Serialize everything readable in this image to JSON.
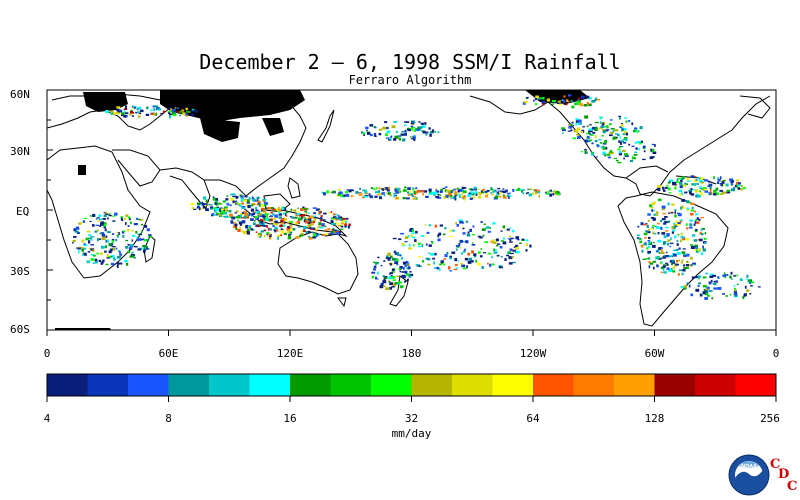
{
  "title": "December 2 – 6, 1998 SSM/I Rainfall",
  "subtitle": "Ferraro Algorithm",
  "map": {
    "lat_labels": [
      "60N",
      "30N",
      "EQ",
      "30S",
      "60S"
    ],
    "lon_labels": [
      "0",
      "60E",
      "120E",
      "180",
      "120W",
      "60W",
      "0"
    ],
    "lat_range": [
      -60,
      60
    ],
    "lon_range": [
      0,
      360
    ],
    "no_data_color": "#000000",
    "coastline_color": "#000000"
  },
  "colorbar": {
    "colors": [
      "#0a1f7a",
      "#0a35b8",
      "#1a55ff",
      "#00999b",
      "#00c6cc",
      "#00ffff",
      "#009900",
      "#00c400",
      "#00ff00",
      "#b5b500",
      "#dddd00",
      "#ffff00",
      "#ff5500",
      "#ff7a00",
      "#ff9f00",
      "#990000",
      "#cc0000",
      "#ff0000"
    ],
    "tick_labels": [
      "4",
      "8",
      "16",
      "32",
      "64",
      "128",
      "256"
    ],
    "units": "mm/day"
  },
  "logo": {
    "noaa_text": "NOAA",
    "cdc_letters": [
      "C",
      "D",
      "C"
    ]
  }
}
